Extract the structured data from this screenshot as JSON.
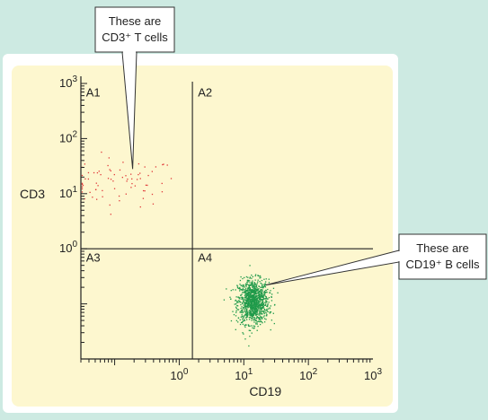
{
  "colors": {
    "page_background": "#cdeae2",
    "panel_background": "#ffffff",
    "plot_background": "#fdf7cf",
    "t_cells": "#e03a3a",
    "b_cells": "#1f9a4a"
  },
  "chart_data": {
    "type": "scatter",
    "xlabel": "CD19",
    "ylabel": "CD3",
    "x_scale": "log",
    "y_scale": "log",
    "xlim": [
      0.03,
      1000
    ],
    "ylim": [
      0.01,
      1000
    ],
    "x_ticks": [
      {
        "value": 1,
        "base": "10",
        "exp": "0"
      },
      {
        "value": 10,
        "base": "10",
        "exp": "1"
      },
      {
        "value": 100,
        "base": "10",
        "exp": "2"
      },
      {
        "value": 1000,
        "base": "10",
        "exp": "3"
      }
    ],
    "y_ticks": [
      {
        "value": 1,
        "base": "10",
        "exp": "0"
      },
      {
        "value": 10,
        "base": "10",
        "exp": "1"
      },
      {
        "value": 100,
        "base": "10",
        "exp": "2"
      },
      {
        "value": 1000,
        "base": "10",
        "exp": "3"
      }
    ],
    "gates": {
      "x": 1.6,
      "y": 1.0
    },
    "quadrants": [
      {
        "name": "A1",
        "x": 0.036,
        "y": 700
      },
      {
        "name": "A2",
        "x": 1.95,
        "y": 700
      },
      {
        "name": "A3",
        "x": 0.036,
        "y": 0.7
      },
      {
        "name": "A4",
        "x": 1.95,
        "y": 0.7
      }
    ],
    "populations": [
      {
        "id": "t_cells",
        "description": "CD3+ T cells",
        "center": [
          0.12,
          16
        ],
        "spread": [
          0.45,
          0.22
        ],
        "count": 75
      },
      {
        "id": "b_cells",
        "description": "CD19+ B cells",
        "center": [
          14,
          0.11
        ],
        "spread": [
          0.12,
          0.2
        ],
        "count": 1100
      }
    ],
    "annotations": [
      {
        "lines": [
          "These are",
          "CD3⁺ T cells"
        ],
        "target": [
          0.19,
          28
        ]
      },
      {
        "lines": [
          "These are",
          "CD19⁺ B cells"
        ],
        "target": [
          22,
          0.22
        ]
      }
    ]
  }
}
